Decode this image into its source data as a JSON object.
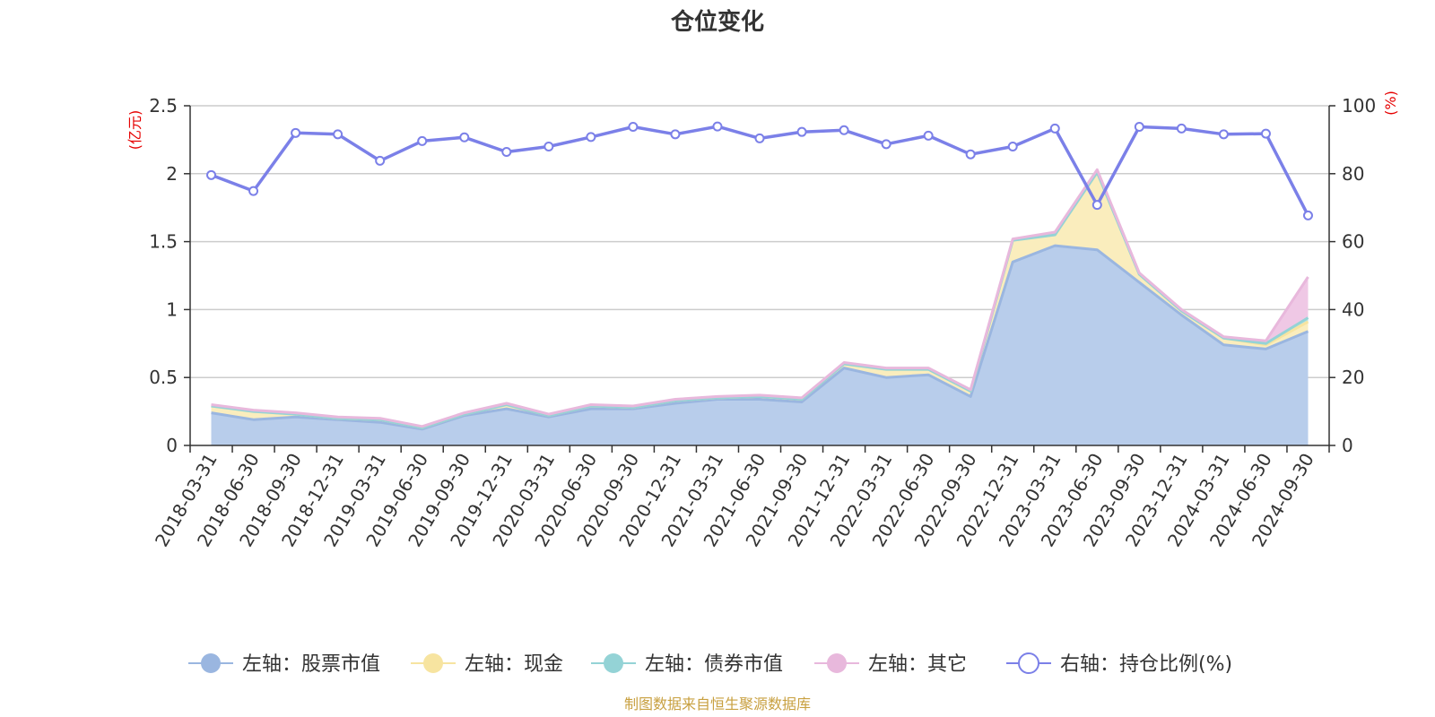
{
  "chart_data": {
    "type": "area",
    "title": "仓位变化",
    "left_axis_unit": "(亿元)",
    "right_axis_unit": "(%)",
    "left_ylim": [
      0,
      2.5
    ],
    "left_ticks": [
      "0",
      "0.5",
      "1",
      "1.5",
      "2",
      "2.5"
    ],
    "right_ylim": [
      0,
      100
    ],
    "right_ticks": [
      "0",
      "20",
      "40",
      "60",
      "80",
      "100"
    ],
    "categories": [
      "2018-03-31",
      "2018-06-30",
      "2018-09-30",
      "2018-12-31",
      "2019-03-31",
      "2019-06-30",
      "2019-09-30",
      "2019-12-31",
      "2020-03-31",
      "2020-06-30",
      "2020-09-30",
      "2020-12-31",
      "2021-03-31",
      "2021-06-30",
      "2021-09-30",
      "2021-12-31",
      "2022-03-31",
      "2022-06-30",
      "2022-09-30",
      "2022-12-31",
      "2023-03-31",
      "2023-06-30",
      "2023-09-30",
      "2023-12-31",
      "2024-03-31",
      "2024-06-30",
      "2024-09-30"
    ],
    "series": [
      {
        "name": "左轴：股票市值",
        "axis": "left",
        "stacked": true,
        "color": "#9ab6e0",
        "fill": "#b8cdeb",
        "values": [
          0.24,
          0.19,
          0.21,
          0.19,
          0.17,
          0.12,
          0.22,
          0.27,
          0.21,
          0.27,
          0.27,
          0.31,
          0.34,
          0.34,
          0.32,
          0.57,
          0.5,
          0.52,
          0.36,
          1.35,
          1.47,
          1.44,
          1.2,
          0.96,
          0.74,
          0.71,
          0.84
        ]
      },
      {
        "name": "左轴：现金",
        "axis": "left",
        "stacked": true,
        "color": "#f7e4a0",
        "fill": "#faedbd",
        "values": [
          0.05,
          0.06,
          0.02,
          0.01,
          0.02,
          0.01,
          0.01,
          0.03,
          0.01,
          0.02,
          0.01,
          0.02,
          0.01,
          0.02,
          0.02,
          0.03,
          0.06,
          0.04,
          0.04,
          0.16,
          0.08,
          0.57,
          0.06,
          0.03,
          0.05,
          0.03,
          0.07
        ]
      },
      {
        "name": "左轴：债券市值",
        "axis": "left",
        "stacked": true,
        "color": "#94d3d6",
        "fill": "#b8e3e5",
        "values": [
          0,
          0,
          0,
          0,
          0,
          0,
          0,
          0,
          0,
          0,
          0,
          0,
          0,
          0,
          0,
          0,
          0,
          0,
          0,
          0,
          0,
          0,
          0,
          0,
          0,
          0.01,
          0.03
        ]
      },
      {
        "name": "左轴：其它",
        "axis": "left",
        "stacked": true,
        "color": "#e8b8dc",
        "fill": "#efc8e5",
        "values": [
          0.01,
          0.01,
          0.01,
          0.01,
          0.01,
          0.01,
          0.01,
          0.01,
          0.01,
          0.01,
          0.01,
          0.01,
          0.01,
          0.01,
          0.01,
          0.01,
          0.01,
          0.01,
          0.01,
          0.01,
          0.02,
          0.02,
          0.01,
          0.01,
          0.01,
          0.02,
          0.3
        ]
      },
      {
        "name": "右轴：持仓比例(%)",
        "axis": "right",
        "stacked": false,
        "color": "#7b80e8",
        "values": [
          79.6,
          74.9,
          92.0,
          91.6,
          83.8,
          89.6,
          90.7,
          86.4,
          88.0,
          90.8,
          93.8,
          91.6,
          93.9,
          90.4,
          92.3,
          92.8,
          88.7,
          91.2,
          85.7,
          88.0,
          93.3,
          70.8,
          93.8,
          93.3,
          91.6,
          91.8,
          67.7
        ]
      }
    ],
    "legend_position": "bottom",
    "grid": true
  },
  "footer": {
    "source": "制图数据来自恒生聚源数据库"
  }
}
